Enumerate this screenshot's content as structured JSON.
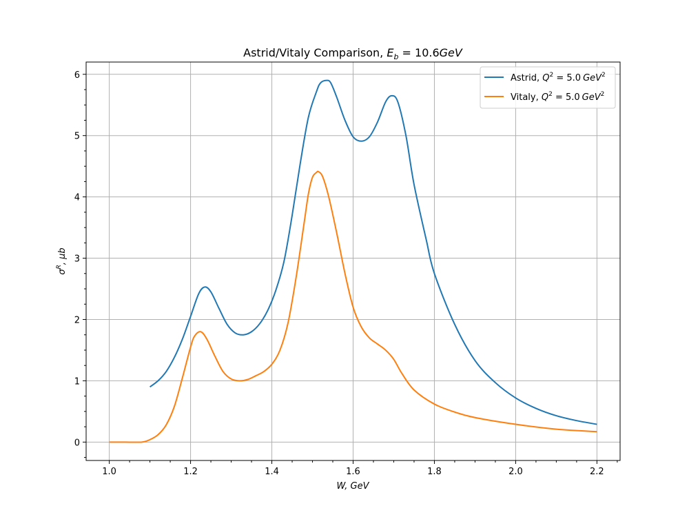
{
  "chart_data": {
    "type": "line",
    "title": "Astrid/Vitaly Comparison, E_b = 10.6GeV",
    "title_parts": {
      "main": "Astrid/Vitaly Comparison, ",
      "var": "E",
      "sub": "b",
      "rest": " = 10.6",
      "unit": "GeV"
    },
    "xlabel": "W, GeV",
    "ylabel": "σ^R, μb",
    "ylabel_parts": {
      "sym": "σ",
      "sup": "R",
      "rest": ", μb"
    },
    "xlim": [
      0.943,
      2.257
    ],
    "ylim": [
      -0.3,
      6.2
    ],
    "x_ticks": [
      1.0,
      1.2,
      1.4,
      1.6,
      1.8,
      2.0,
      2.2
    ],
    "x_tick_labels": [
      "1.0",
      "1.2",
      "1.4",
      "1.6",
      "1.8",
      "2.0",
      "2.2"
    ],
    "y_ticks": [
      0,
      1,
      2,
      3,
      4,
      5,
      6
    ],
    "y_tick_labels": [
      "0",
      "1",
      "2",
      "3",
      "4",
      "5",
      "6"
    ],
    "grid": true,
    "legend_position": "top-right",
    "series": [
      {
        "name": "Astrid, Q^2 = 5.0 GeV^2",
        "label_parts": {
          "pre": "Astrid, ",
          "q": "Q",
          "qsup": "2",
          "mid": " = 5.0",
          "unit": "GeV",
          "usup": "2"
        },
        "color": "#1f77b4",
        "x": [
          1.1,
          1.12,
          1.14,
          1.16,
          1.18,
          1.2,
          1.22,
          1.235,
          1.25,
          1.27,
          1.29,
          1.31,
          1.33,
          1.35,
          1.37,
          1.39,
          1.41,
          1.43,
          1.45,
          1.47,
          1.49,
          1.51,
          1.52,
          1.535,
          1.545,
          1.56,
          1.58,
          1.6,
          1.62,
          1.64,
          1.66,
          1.68,
          1.695,
          1.71,
          1.73,
          1.75,
          1.78,
          1.8,
          1.85,
          1.9,
          1.95,
          2.0,
          2.05,
          2.1,
          2.15,
          2.2
        ],
        "y": [
          0.9,
          1.0,
          1.15,
          1.38,
          1.68,
          2.05,
          2.42,
          2.53,
          2.45,
          2.18,
          1.92,
          1.78,
          1.75,
          1.8,
          1.93,
          2.15,
          2.48,
          2.95,
          3.7,
          4.55,
          5.3,
          5.72,
          5.86,
          5.9,
          5.86,
          5.62,
          5.25,
          4.98,
          4.91,
          4.98,
          5.22,
          5.55,
          5.65,
          5.55,
          5.0,
          4.2,
          3.3,
          2.75,
          1.92,
          1.33,
          0.97,
          0.72,
          0.55,
          0.43,
          0.35,
          0.29
        ]
      },
      {
        "name": "Vitaly, Q^2 = 5.0 GeV^2",
        "label_parts": {
          "pre": "Vitaly, ",
          "q": "Q",
          "qsup": "2",
          "mid": " = 5.0",
          "unit": "GeV",
          "usup": "2"
        },
        "color": "#ff7f0e",
        "x": [
          1.0,
          1.04,
          1.08,
          1.1,
          1.12,
          1.14,
          1.16,
          1.18,
          1.2,
          1.21,
          1.225,
          1.24,
          1.26,
          1.28,
          1.3,
          1.32,
          1.34,
          1.36,
          1.38,
          1.4,
          1.42,
          1.44,
          1.46,
          1.48,
          1.49,
          1.5,
          1.51,
          1.515,
          1.525,
          1.54,
          1.56,
          1.58,
          1.6,
          1.62,
          1.64,
          1.66,
          1.68,
          1.7,
          1.72,
          1.75,
          1.8,
          1.85,
          1.9,
          2.0,
          2.1,
          2.2
        ],
        "y": [
          0.0,
          0.0,
          0.0,
          0.04,
          0.12,
          0.28,
          0.58,
          1.05,
          1.55,
          1.73,
          1.8,
          1.68,
          1.4,
          1.15,
          1.03,
          1.0,
          1.02,
          1.08,
          1.15,
          1.27,
          1.5,
          1.95,
          2.7,
          3.6,
          4.05,
          4.32,
          4.4,
          4.41,
          4.33,
          4.0,
          3.4,
          2.75,
          2.2,
          1.88,
          1.7,
          1.6,
          1.5,
          1.35,
          1.12,
          0.85,
          0.62,
          0.49,
          0.4,
          0.29,
          0.21,
          0.17
        ]
      }
    ]
  }
}
